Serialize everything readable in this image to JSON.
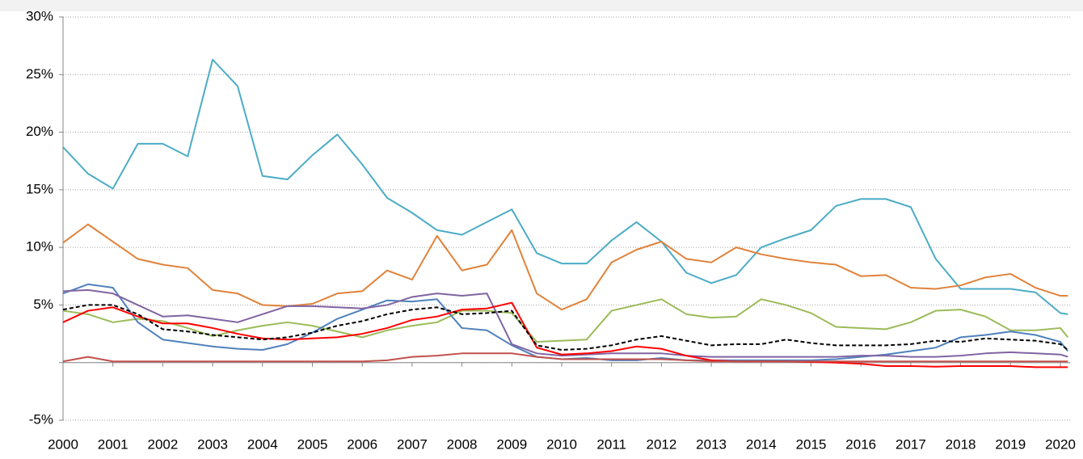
{
  "chart_data": {
    "type": "line",
    "x": [
      2000,
      2000.5,
      2001,
      2001.5,
      2002,
      2002.5,
      2003,
      2003.5,
      2004,
      2004.5,
      2005,
      2005.5,
      2006,
      2006.5,
      2007,
      2007.5,
      2008,
      2008.5,
      2009,
      2009.5,
      2010,
      2010.5,
      2011,
      2011.5,
      2012,
      2012.5,
      2013,
      2013.5,
      2014,
      2014.5,
      2015,
      2015.5,
      2016,
      2016.5,
      2017,
      2017.5,
      2018,
      2018.5,
      2019,
      2019.5,
      2020,
      2020.15
    ],
    "series": [
      {
        "color": "#4bacc6",
        "values": [
          18.7,
          16.4,
          15.1,
          19.0,
          19.0,
          17.9,
          26.3,
          24,
          16.2,
          15.9,
          18.0,
          19.8,
          17.2,
          14.3,
          13.0,
          11.5,
          11.1,
          12.2,
          13.3,
          9.5,
          8.6,
          8.6,
          10.6,
          12.2,
          10.5,
          7.8,
          6.9,
          7.6,
          10.0,
          10.8,
          11.5,
          13.6,
          14.2,
          14.2,
          13.5,
          9.0,
          6.4,
          6.4,
          6.4,
          6.1,
          4.3,
          4.2
        ]
      },
      {
        "color": "#e0823a",
        "values": [
          10.4,
          12.0,
          10.5,
          9.0,
          8.5,
          8.2,
          6.3,
          6.0,
          5.0,
          4.9,
          5.1,
          6.0,
          6.2,
          8.0,
          7.2,
          11.0,
          8.0,
          8.5,
          11.5,
          6.0,
          4.6,
          5.5,
          8.7,
          9.8,
          10.5,
          9.0,
          8.7,
          10.0,
          9.4,
          9.0,
          8.7,
          8.5,
          7.5,
          7.6,
          6.5,
          6.4,
          6.7,
          7.4,
          7.7,
          6.5,
          5.8,
          5.8
        ]
      },
      {
        "color": "#9bbb59",
        "values": [
          4.5,
          4.2,
          3.5,
          3.8,
          3.6,
          3.0,
          2.3,
          2.8,
          3.2,
          3.5,
          3.2,
          2.7,
          2.2,
          2.8,
          3.2,
          3.5,
          4.5,
          4.5,
          4.3,
          1.8,
          1.9,
          2.0,
          4.5,
          5.0,
          5.5,
          4.2,
          3.9,
          4.0,
          5.5,
          5.0,
          4.3,
          3.1,
          3.0,
          2.9,
          3.5,
          4.5,
          4.6,
          4.0,
          2.8,
          2.8,
          3.0,
          2.2
        ]
      },
      {
        "color": "#4f81bd",
        "values": [
          6.0,
          6.8,
          6.5,
          3.5,
          2.0,
          1.7,
          1.4,
          1.2,
          1.1,
          1.6,
          2.6,
          3.8,
          4.6,
          5.4,
          5.3,
          5.5,
          3.0,
          2.8,
          1.5,
          0.5,
          0.3,
          0.4,
          0.2,
          0.2,
          0.4,
          0.2,
          0.2,
          0.2,
          0.2,
          0.2,
          0.2,
          0.3,
          0.5,
          0.7,
          1.0,
          1.3,
          2.2,
          2.4,
          2.7,
          2.4,
          1.8,
          1.0
        ]
      },
      {
        "color": "#8064a2",
        "values": [
          6.2,
          6.3,
          6.0,
          5.0,
          4.0,
          4.1,
          3.8,
          3.5,
          4.2,
          4.9,
          4.9,
          4.8,
          4.7,
          5.0,
          5.7,
          6.0,
          5.8,
          6.0,
          1.6,
          0.8,
          0.6,
          0.7,
          0.8,
          0.8,
          0.8,
          0.6,
          0.5,
          0.5,
          0.5,
          0.5,
          0.5,
          0.5,
          0.6,
          0.6,
          0.5,
          0.5,
          0.6,
          0.8,
          0.9,
          0.8,
          0.7,
          0.5
        ]
      },
      {
        "color": "#ff0000",
        "values": [
          3.5,
          4.5,
          4.8,
          4.0,
          3.4,
          3.4,
          3.0,
          2.5,
          2.1,
          2.0,
          2.1,
          2.2,
          2.5,
          3.0,
          3.7,
          4.0,
          4.6,
          4.7,
          5.2,
          1.3,
          0.7,
          0.8,
          1.0,
          1.4,
          1.2,
          0.6,
          0.2,
          0.1,
          0.1,
          0.1,
          0.05,
          0.0,
          -0.1,
          -0.3,
          -0.3,
          -0.35,
          -0.3,
          -0.3,
          -0.3,
          -0.4,
          -0.4,
          -0.4
        ]
      },
      {
        "color": "#c0504d",
        "values": [
          0.1,
          0.5,
          0.1,
          0.1,
          0.1,
          0.1,
          0.1,
          0.1,
          0.1,
          0.1,
          0.1,
          0.1,
          0.1,
          0.2,
          0.5,
          0.6,
          0.8,
          0.8,
          0.8,
          0.5,
          0.3,
          0.3,
          0.3,
          0.3,
          0.3,
          0.2,
          0.1,
          0.1,
          0.1,
          0.1,
          0.1,
          0.1,
          0.1,
          0.1,
          0.1,
          0.1,
          0.1,
          0.1,
          0.1,
          0.1,
          0.1,
          0.1
        ]
      },
      {
        "color": "#000000",
        "dashed": true,
        "values": [
          4.6,
          5.0,
          5.0,
          4.2,
          2.9,
          2.7,
          2.4,
          2.2,
          2.0,
          2.2,
          2.6,
          3.2,
          3.6,
          4.2,
          4.6,
          4.8,
          4.2,
          4.3,
          4.5,
          1.5,
          1.1,
          1.2,
          1.5,
          2.0,
          2.3,
          1.9,
          1.5,
          1.6,
          1.6,
          2.0,
          1.7,
          1.5,
          1.5,
          1.5,
          1.6,
          1.9,
          1.8,
          2.1,
          2.0,
          1.9,
          1.6,
          1.1
        ]
      }
    ],
    "xlim": [
      2000,
      2020.2
    ],
    "xticks": [
      2000,
      2001,
      2002,
      2003,
      2004,
      2005,
      2006,
      2007,
      2008,
      2009,
      2010,
      2011,
      2012,
      2013,
      2014,
      2015,
      2016,
      2017,
      2018,
      2019,
      2020
    ],
    "ylim": [
      -5,
      30
    ],
    "yticks": [
      {
        "value": -5,
        "label": "-5%"
      },
      {
        "value": 0,
        "label": ""
      },
      {
        "value": 5,
        "label": "5%"
      },
      {
        "value": 10,
        "label": "10%"
      },
      {
        "value": 15,
        "label": "15%"
      },
      {
        "value": 20,
        "label": "20%"
      },
      {
        "value": 25,
        "label": "25%"
      },
      {
        "value": 30,
        "label": "30%"
      }
    ],
    "grid": true
  }
}
